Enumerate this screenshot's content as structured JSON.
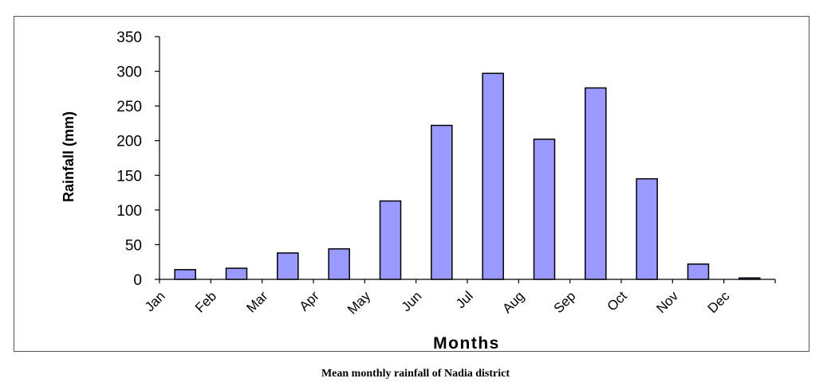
{
  "caption": "Mean monthly rainfall of Nadia district",
  "colors": {
    "bar_fill": "#9999ff",
    "bar_stroke": "#000000",
    "axis": "#000000",
    "frame": "#555555"
  },
  "chart_data": {
    "type": "bar",
    "title": "",
    "xlabel": "Months",
    "ylabel": "Rainfall (mm)",
    "ylim": [
      0,
      350
    ],
    "yticks": [
      "0",
      "50",
      "100",
      "150",
      "200",
      "250",
      "300",
      "350"
    ],
    "grid": false,
    "legend": "none",
    "categories": [
      "Jan",
      "Feb",
      "Mar",
      "Apr",
      "May",
      "Jun",
      "Jul",
      "Aug",
      "Sep",
      "Oct",
      "Nov",
      "Dec"
    ],
    "values": [
      14,
      16,
      38,
      44,
      113,
      222,
      297,
      202,
      276,
      145,
      22,
      2
    ]
  }
}
